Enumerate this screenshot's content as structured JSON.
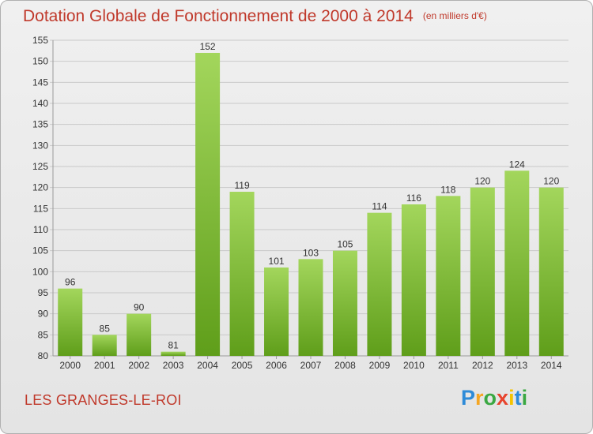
{
  "header": {
    "title": "Dotation Globale de Fonctionnement de 2000 à 2014",
    "unit": "(en milliers d'€)"
  },
  "footer": {
    "place": "LES GRANGES-LE-ROI",
    "logo_letters": [
      "P",
      "r",
      "o",
      "x",
      "i",
      "t",
      "i"
    ],
    "logo_colors": [
      "#2e8bd8",
      "#f5a623",
      "#3aa842",
      "#e8442e",
      "#f5c400",
      "#2e8bd8",
      "#3aa842"
    ]
  },
  "colors": {
    "bar_light": "#a3d65c",
    "bar_dark": "#5f9e1a",
    "title": "#c0392b"
  },
  "chart_data": {
    "type": "bar",
    "categories": [
      "2000",
      "2001",
      "2002",
      "2003",
      "2004",
      "2005",
      "2006",
      "2007",
      "2008",
      "2009",
      "2010",
      "2011",
      "2012",
      "2013",
      "2014"
    ],
    "values": [
      96,
      85,
      90,
      81,
      152,
      119,
      101,
      103,
      105,
      114,
      116,
      118,
      120,
      124,
      120
    ],
    "ylim": [
      80,
      155
    ],
    "yticks": [
      80,
      85,
      90,
      95,
      100,
      105,
      110,
      115,
      120,
      125,
      130,
      135,
      140,
      145,
      150,
      155
    ],
    "grid": true
  }
}
